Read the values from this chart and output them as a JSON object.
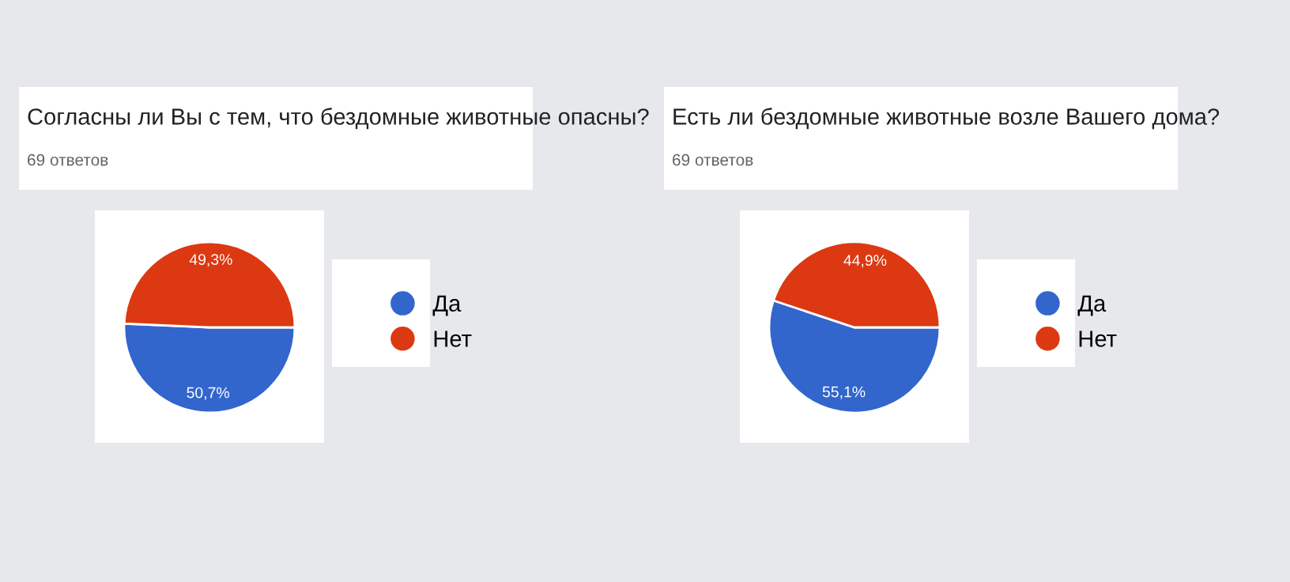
{
  "chart_data": [
    {
      "type": "pie",
      "title": "Согласны ли Вы с тем, что бездомные животные опасны?",
      "subtitle": "69 ответов",
      "categories": [
        "Да",
        "Нет"
      ],
      "values": [
        50.7,
        49.3
      ],
      "colors": [
        "#3366cc",
        "#dc3912"
      ],
      "value_labels": [
        "50,7%",
        "49,3%"
      ],
      "legend": "right"
    },
    {
      "type": "pie",
      "title": "Есть ли бездомные животные возле Вашего дома?",
      "subtitle": "69 ответов",
      "categories": [
        "Да",
        "Нет"
      ],
      "values": [
        55.1,
        44.9
      ],
      "colors": [
        "#3366cc",
        "#dc3912"
      ],
      "value_labels": [
        "55,1%",
        "44,9%"
      ],
      "legend": "right"
    }
  ]
}
